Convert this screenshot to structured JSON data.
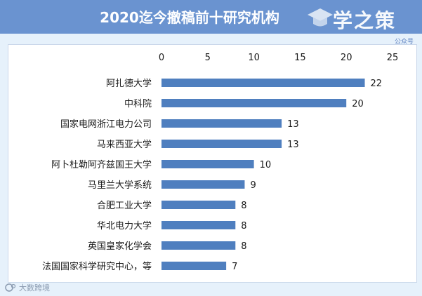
{
  "header": {
    "title": "2020迄今撤稿前十研究机构"
  },
  "logo": {
    "text": "学之策",
    "subtext": "公众号"
  },
  "watermark": {
    "text": "大数跨境"
  },
  "colors": {
    "header": "#6a93d0",
    "bar": "#4f7fbf",
    "background": "#e6f1fb",
    "panel": "#ffffff"
  },
  "chart_data": {
    "type": "bar",
    "orientation": "horizontal",
    "categories": [
      "阿扎德大学",
      "中科院",
      "国家电网浙江电力公司",
      "马来西亚大学",
      "阿卜杜勒阿齐兹国王大学",
      "马里兰大学系统",
      "合肥工业大学",
      "华北电力大学",
      "英国皇家化学会",
      "法国国家科学研究中心，等"
    ],
    "values": [
      22,
      20,
      13,
      13,
      10,
      9,
      8,
      8,
      8,
      7
    ],
    "xlim": [
      0,
      25
    ],
    "xticks": [
      0,
      5,
      10,
      15,
      20,
      25
    ],
    "axis_position": "top",
    "grid": false,
    "data_labels": true
  }
}
